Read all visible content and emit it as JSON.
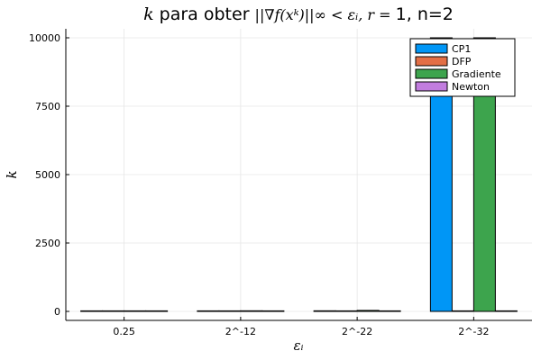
{
  "chart_data": {
    "type": "bar",
    "title_parts": {
      "math_1": "k",
      "text_1": " para obter ",
      "math_2": "||∇f(xᵏ)||∞ < εᵢ, r = ",
      "text_2": "1, n=2"
    },
    "xlabel": "εᵢ",
    "ylabel": "k",
    "categories": [
      "0.25",
      "2^-12",
      "2^-22",
      "2^-32"
    ],
    "series": [
      {
        "name": "CP1",
        "color": "#0096f6",
        "values": [
          6,
          14,
          22,
          10000
        ]
      },
      {
        "name": "DFP",
        "color": "#e26f46",
        "values": [
          2,
          2,
          2,
          2
        ]
      },
      {
        "name": "Gradiente",
        "color": "#3da44d",
        "values": [
          8,
          22,
          36,
          10000
        ]
      },
      {
        "name": "Newton",
        "color": "#c27ddf",
        "values": [
          1,
          1,
          1,
          1
        ]
      }
    ],
    "ylim": [
      -300,
      10300
    ],
    "yticks": [
      0,
      2500,
      5000,
      7500,
      10000
    ],
    "ytick_labels": [
      "0",
      "2500",
      "5000",
      "7500",
      "10000"
    ],
    "grid": true,
    "legend_position": "top-right"
  }
}
